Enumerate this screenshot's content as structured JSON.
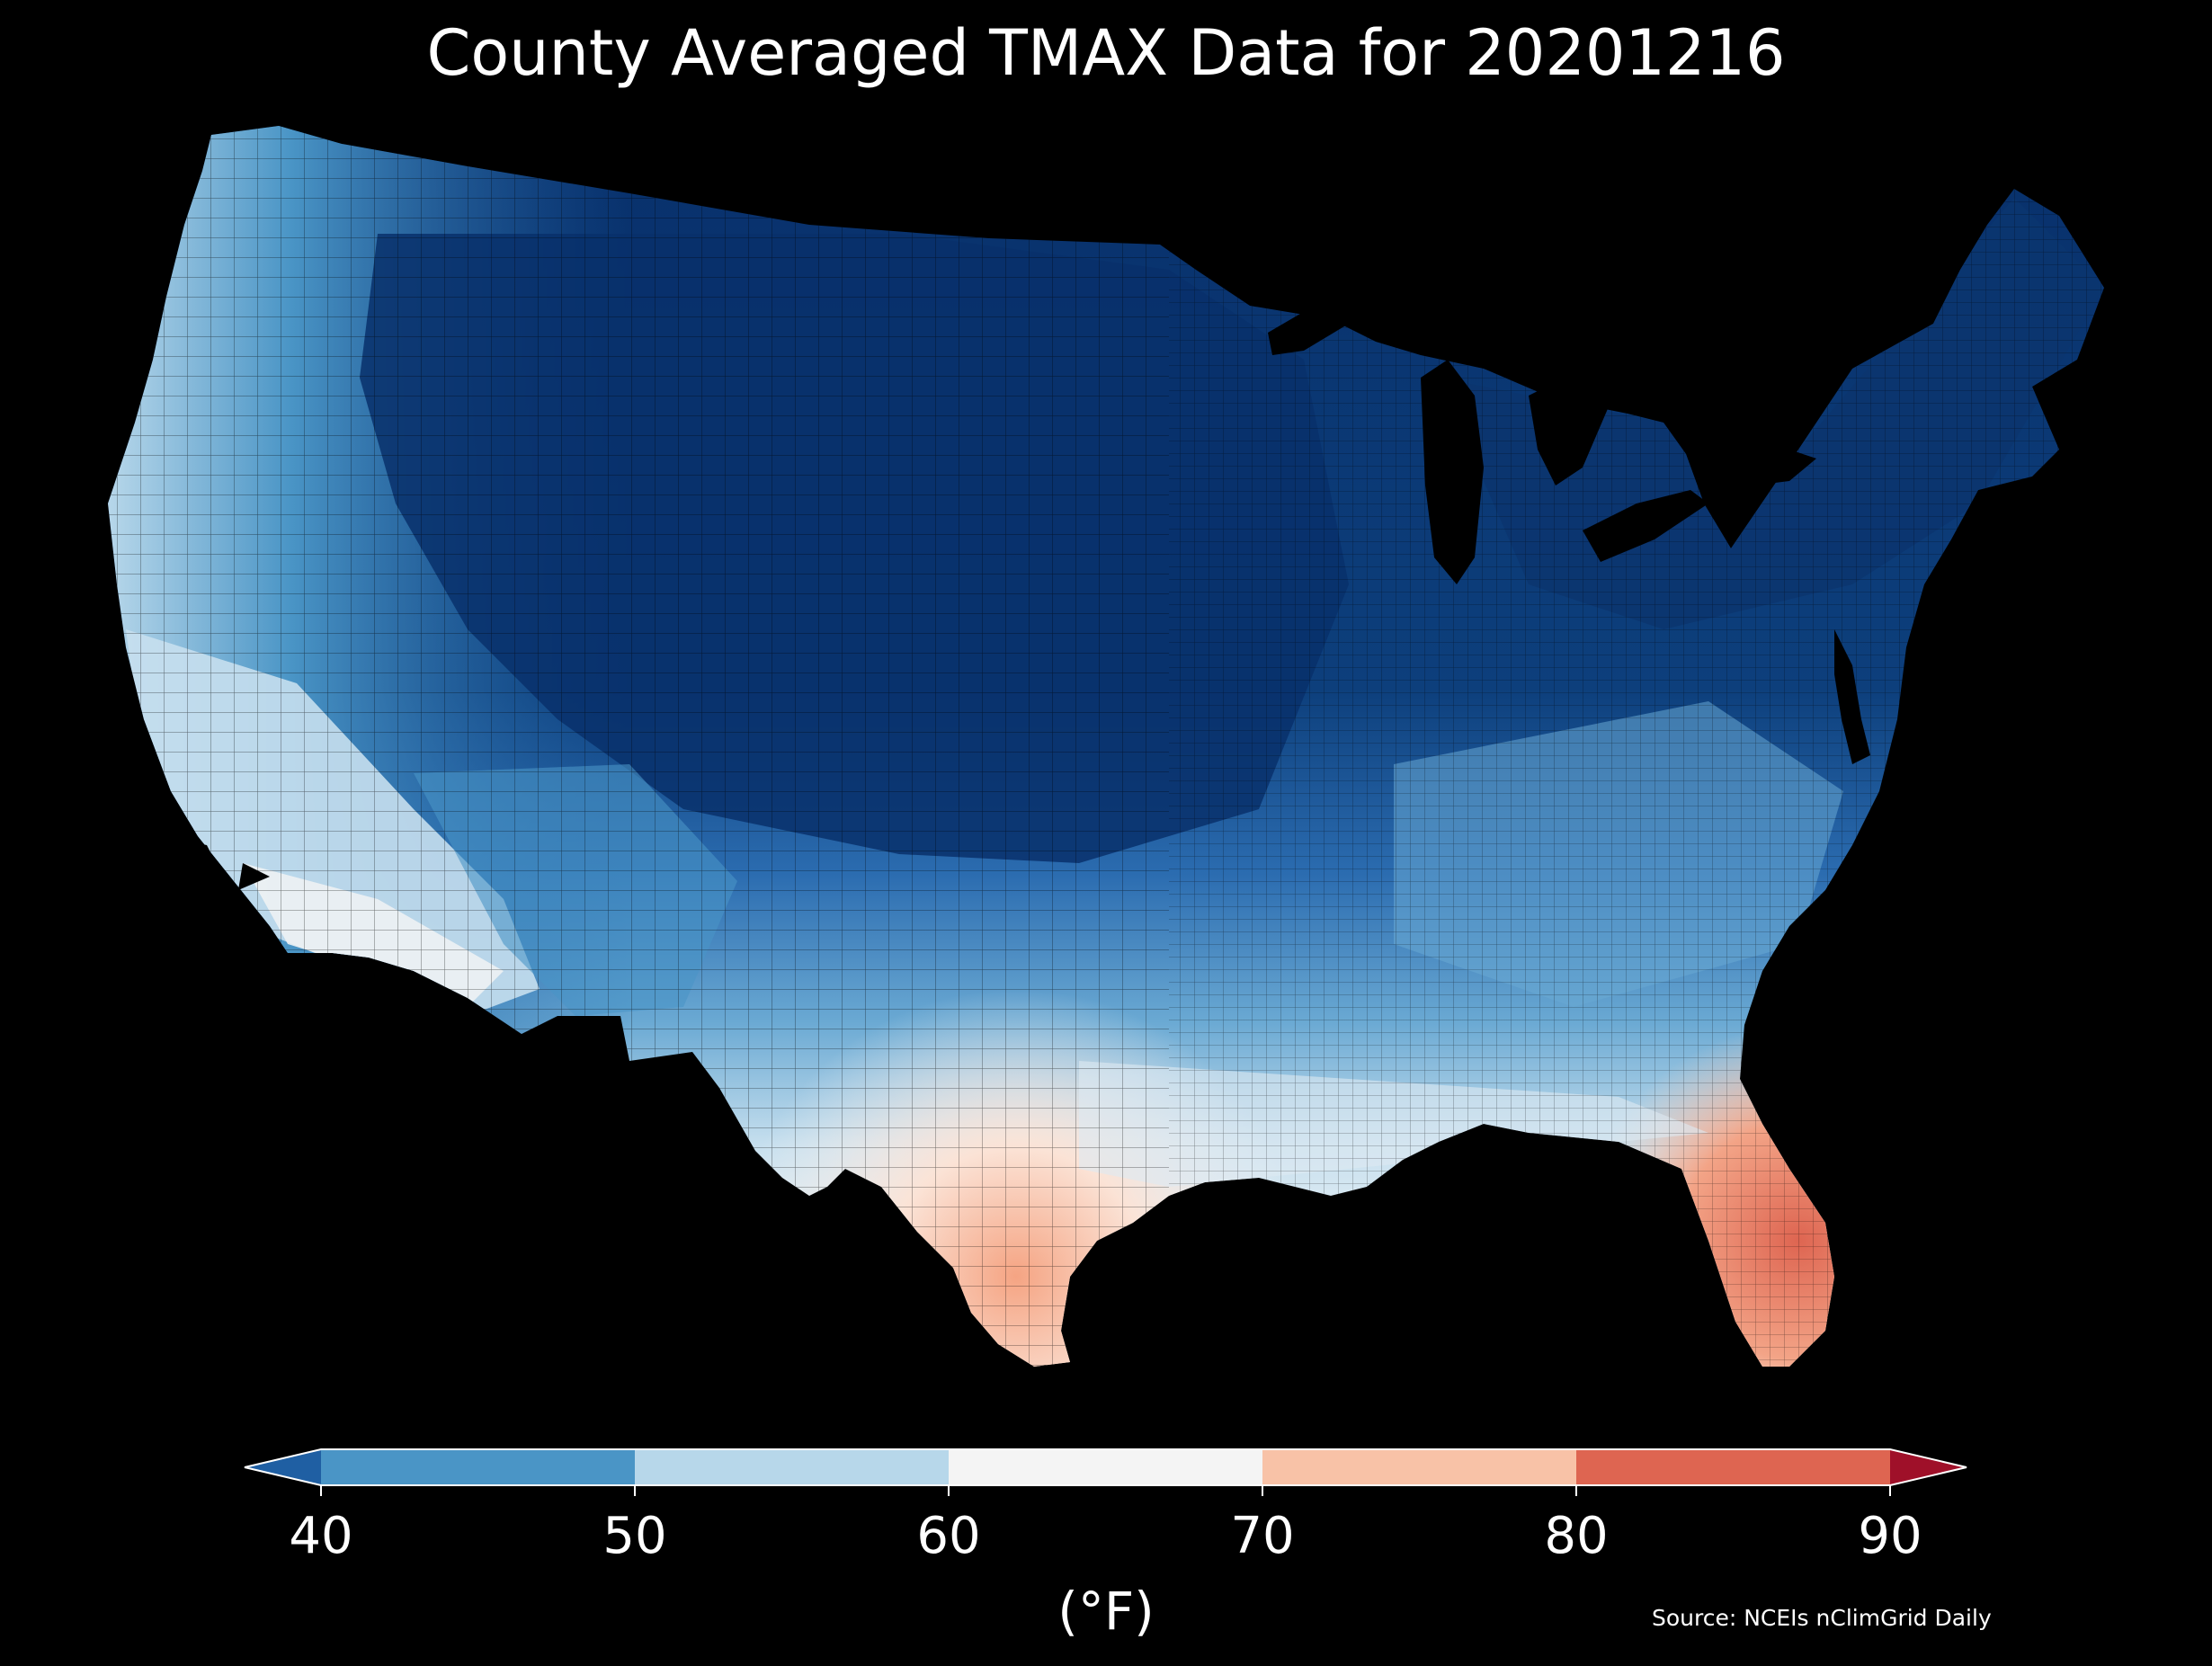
{
  "title": "County Averaged TMAX Data for 20201216",
  "colorbar": {
    "unit_label": "(°F)",
    "ticks": [
      "40",
      "50",
      "60",
      "70",
      "80",
      "90"
    ],
    "bins": [
      {
        "from": null,
        "to": 40,
        "color": "#1f5fa3",
        "extend": "min"
      },
      {
        "from": 40,
        "to": 50,
        "color": "#4a95c6"
      },
      {
        "from": 50,
        "to": 60,
        "color": "#b7d7ea"
      },
      {
        "from": 60,
        "to": 70,
        "color": "#f4f4f4"
      },
      {
        "from": 70,
        "to": 80,
        "color": "#f8c2a7"
      },
      {
        "from": 80,
        "to": 90,
        "color": "#de6551"
      },
      {
        "from": 90,
        "to": null,
        "color": "#9f1029",
        "extend": "max"
      }
    ]
  },
  "map_colors": {
    "background": "#000000",
    "very_cold": "#08306b",
    "cold": "#1f5fa3",
    "cool": "#4a95c6",
    "mild": "#b7d7ea",
    "neutral": "#f4f4f4",
    "warm": "#f8c2a7",
    "hot": "#de6551",
    "county_lines": "#000000"
  },
  "source": "Source: NCEIs nClimGrid Daily"
}
